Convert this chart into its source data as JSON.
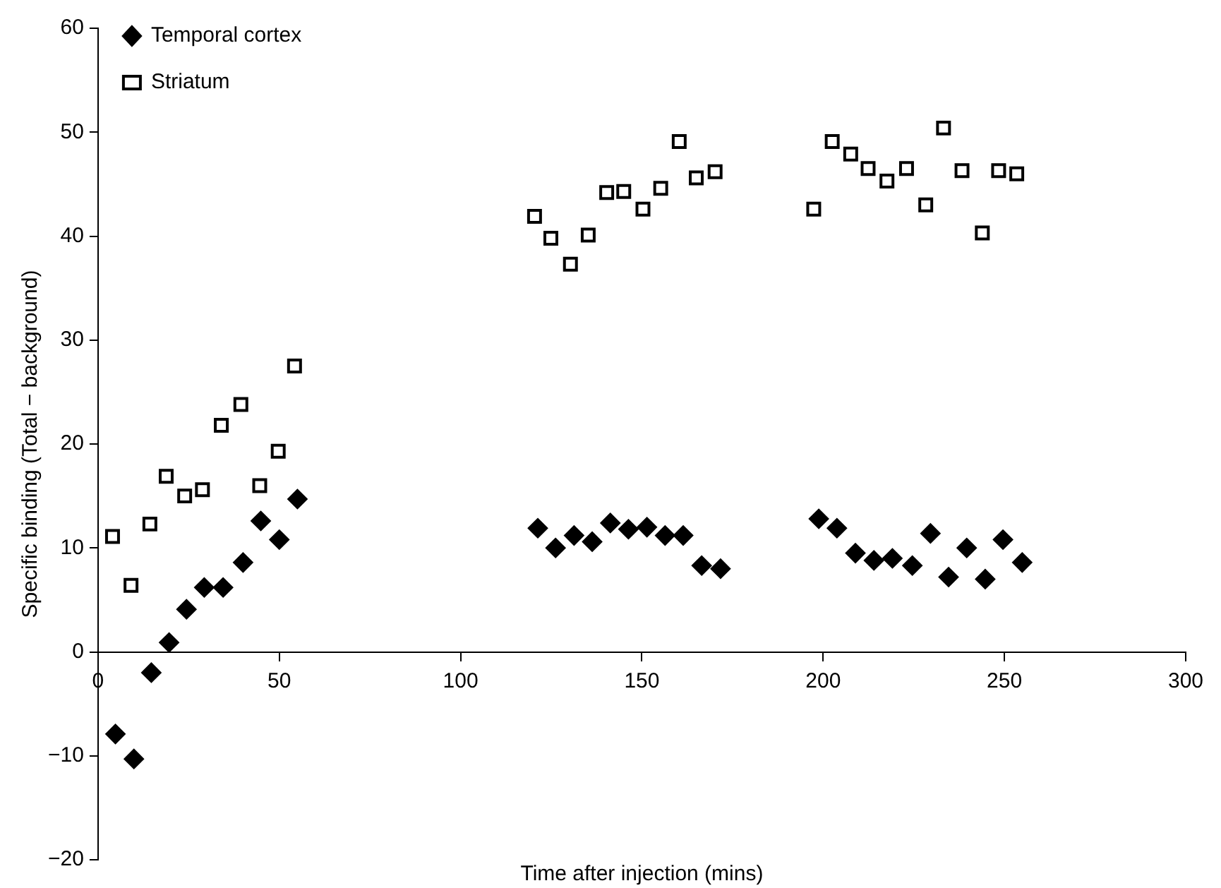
{
  "chart_data": {
    "type": "scatter",
    "xlabel": "Time after injection (mins)",
    "ylabel": "Specific binding (Total − background)",
    "xlim": [
      0,
      300
    ],
    "xticks": [
      0,
      50,
      100,
      150,
      200,
      250,
      300
    ],
    "ylim": [
      -20,
      60
    ],
    "yticks": [
      {
        "value": -20,
        "label": "−20"
      },
      {
        "value": -10,
        "label": "−10"
      },
      0,
      10,
      20,
      30,
      40,
      50,
      60
    ],
    "grid": false,
    "legend": "top left",
    "series": [
      {
        "name": "Temporal cortex",
        "color": "#000000",
        "marker": "diamond",
        "x": [
          4.8,
          9.9,
          14.7,
          19.6,
          24.4,
          29.3,
          34.5,
          40,
          44.9,
          50,
          55,
          121.3,
          126.2,
          131.3,
          136.3,
          141.3,
          146.3,
          151.4,
          156.4,
          161.4,
          166.5,
          171.7,
          198.8,
          203.8,
          208.9,
          214,
          219.1,
          224.6,
          229.6,
          234.6,
          239.6,
          244.7,
          249.6,
          254.9
        ],
        "values": [
          -7.9,
          -10.3,
          -2,
          0.9,
          4.1,
          6.2,
          6.2,
          8.6,
          12.6,
          10.8,
          14.7,
          11.9,
          10,
          11.2,
          10.6,
          12.4,
          11.8,
          12,
          11.2,
          11.2,
          8.3,
          8,
          12.8,
          11.9,
          9.5,
          8.8,
          9,
          8.3,
          11.4,
          7.2,
          10,
          7,
          10.8,
          8.6
        ]
      },
      {
        "name": "Striatum",
        "color": "#000000",
        "marker": "square",
        "x": [
          4,
          9.1,
          14.3,
          18.8,
          23.9,
          28.8,
          34,
          39.4,
          44.6,
          49.7,
          54.2,
          120.4,
          124.9,
          130.3,
          135.2,
          140.3,
          145,
          150.3,
          155.2,
          160.3,
          165,
          170.2,
          197.4,
          202.5,
          207.6,
          212.4,
          217.6,
          223,
          228.3,
          233.2,
          238.3,
          243.9,
          248.4,
          253.4
        ],
        "values": [
          11.1,
          6.4,
          12.3,
          16.9,
          15,
          15.6,
          21.8,
          23.8,
          16,
          19.3,
          27.5,
          41.9,
          39.8,
          37.3,
          40.1,
          44.2,
          44.3,
          42.6,
          44.6,
          49.1,
          45.6,
          46.2,
          42.6,
          49.1,
          47.9,
          46.5,
          45.3,
          46.5,
          43,
          50.4,
          46.3,
          40.3,
          46.3,
          46
        ]
      }
    ]
  }
}
